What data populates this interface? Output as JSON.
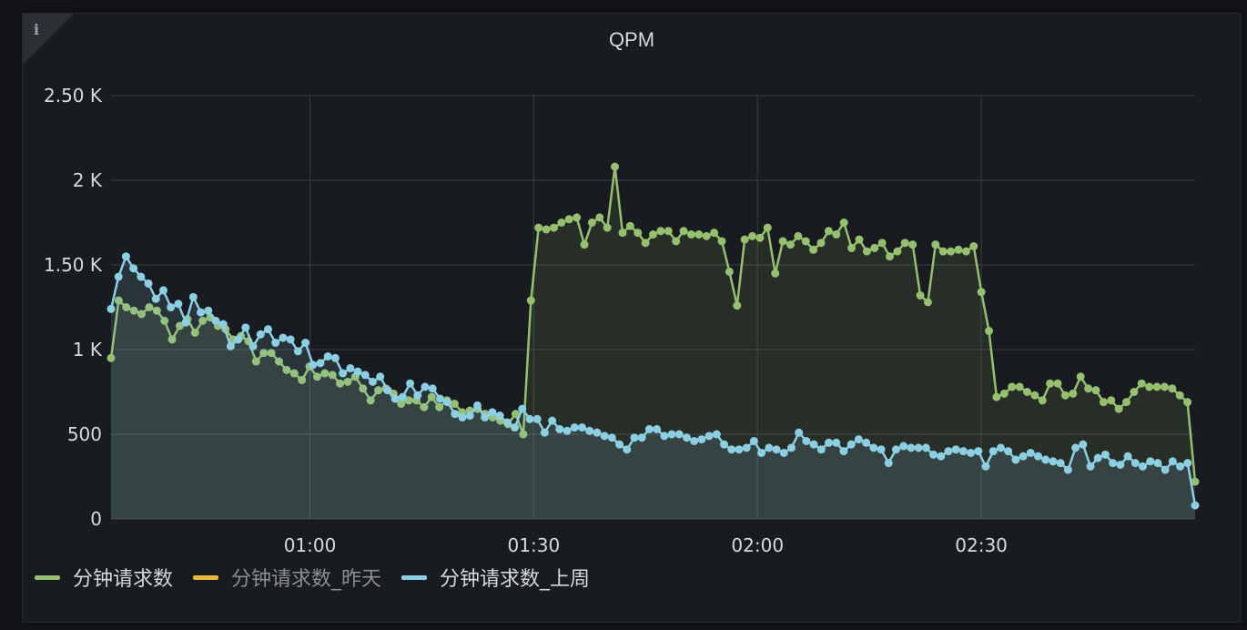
{
  "panel": {
    "title": "QPM",
    "info_icon": "info-icon"
  },
  "colors": {
    "series_current": "#96bf6f",
    "series_yesterday": "#eab839",
    "series_lastweek": "#8ccfe3",
    "grid": "#3a3d42",
    "axis_text": "#d8d9da"
  },
  "legend": [
    {
      "label": "分钟请求数",
      "color": "#96bf6f",
      "hidden": false
    },
    {
      "label": "分钟请求数_昨天",
      "color": "#eab839",
      "hidden": true
    },
    {
      "label": "分钟请求数_上周",
      "color": "#8ccfe3",
      "hidden": false
    }
  ],
  "chart_data": {
    "type": "line",
    "title": "QPM",
    "x_range": [
      "00:33:20",
      "02:58:40"
    ],
    "x_ticks": [
      "01:00",
      "01:30",
      "02:00",
      "02:30"
    ],
    "y_ticks": [
      "0",
      "500",
      "1 K",
      "1.50 K",
      "2 K",
      "2.50 K"
    ],
    "ylim": [
      0,
      2500
    ],
    "grid": true,
    "legend_position": "bottom-left",
    "series": [
      {
        "name": "分钟请求数",
        "values": [
          950,
          1290,
          1250,
          1230,
          1210,
          1250,
          1230,
          1170,
          1060,
          1140,
          1180,
          1100,
          1170,
          1190,
          1140,
          1120,
          1060,
          1080,
          1050,
          930,
          980,
          980,
          930,
          880,
          860,
          820,
          900,
          840,
          860,
          850,
          800,
          810,
          840,
          770,
          700,
          760,
          770,
          740,
          680,
          700,
          700,
          660,
          720,
          660,
          700,
          680,
          630,
          640,
          650,
          620,
          600,
          580,
          560,
          620,
          500,
          1290,
          1720,
          1710,
          1720,
          1750,
          1770,
          1780,
          1620,
          1750,
          1780,
          1720,
          2080,
          1690,
          1730,
          1690,
          1630,
          1680,
          1700,
          1700,
          1640,
          1700,
          1680,
          1680,
          1670,
          1690,
          1640,
          1460,
          1260,
          1650,
          1670,
          1660,
          1720,
          1450,
          1640,
          1620,
          1670,
          1640,
          1590,
          1630,
          1700,
          1680,
          1750,
          1600,
          1650,
          1580,
          1600,
          1630,
          1550,
          1580,
          1630,
          1620,
          1320,
          1280,
          1620,
          1580,
          1580,
          1590,
          1580,
          1610,
          1340,
          1110,
          720,
          740,
          780,
          780,
          750,
          730,
          700,
          800,
          800,
          730,
          740,
          840,
          770,
          760,
          690,
          700,
          650,
          690,
          750,
          800,
          780,
          780,
          780,
          770,
          730,
          690,
          220
        ]
      },
      {
        "name": "分钟请求数_昨天",
        "values": []
      },
      {
        "name": "分钟请求数_上周",
        "values": [
          1240,
          1430,
          1550,
          1480,
          1430,
          1390,
          1300,
          1350,
          1250,
          1270,
          1160,
          1310,
          1220,
          1230,
          1170,
          1150,
          1020,
          1060,
          1130,
          1020,
          1090,
          1120,
          1040,
          1070,
          1060,
          990,
          1040,
          910,
          920,
          960,
          950,
          860,
          890,
          870,
          850,
          810,
          840,
          760,
          710,
          720,
          800,
          730,
          780,
          770,
          710,
          690,
          620,
          600,
          610,
          670,
          600,
          630,
          610,
          570,
          540,
          650,
          590,
          590,
          510,
          580,
          530,
          520,
          540,
          540,
          520,
          510,
          490,
          480,
          440,
          410,
          480,
          480,
          530,
          530,
          490,
          500,
          500,
          480,
          460,
          470,
          490,
          500,
          440,
          410,
          410,
          420,
          460,
          390,
          420,
          410,
          390,
          420,
          510,
          460,
          440,
          410,
          450,
          450,
          400,
          440,
          470,
          450,
          420,
          410,
          330,
          410,
          430,
          420,
          420,
          420,
          380,
          370,
          400,
          410,
          400,
          390,
          400,
          310,
          400,
          420,
          400,
          350,
          370,
          390,
          370,
          350,
          340,
          330,
          290,
          420,
          440,
          310,
          360,
          380,
          330,
          320,
          370,
          330,
          310,
          340,
          330,
          290,
          340,
          310,
          330,
          80
        ]
      }
    ]
  }
}
